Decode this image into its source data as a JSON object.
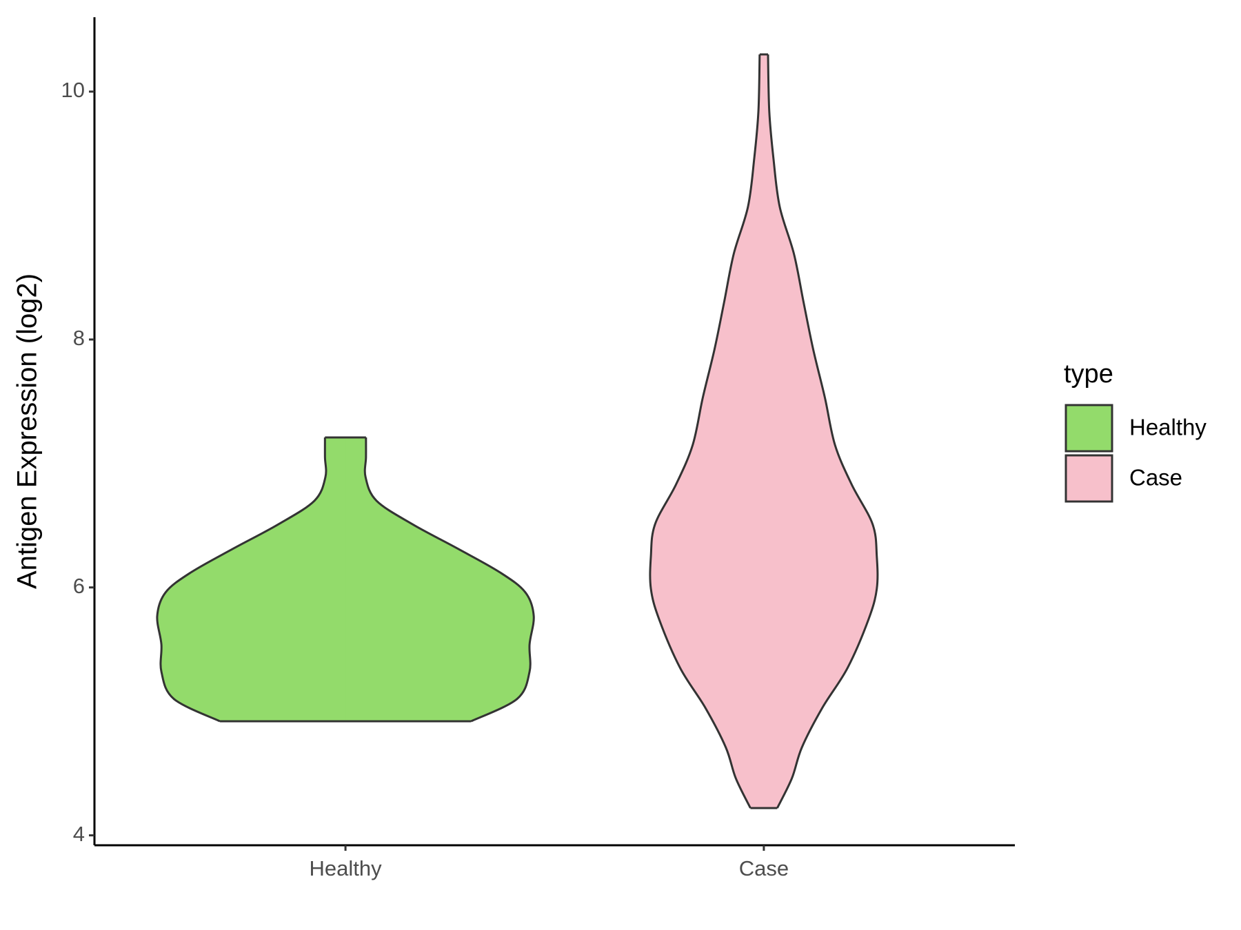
{
  "chart_data": {
    "type": "violin",
    "y_label": "Antigen Expression (log2)",
    "categories": [
      "Healthy",
      "Case"
    ],
    "legend_title": "type",
    "legend": "right",
    "ylim": [
      3.92,
      10.6
    ],
    "yticks": [
      4,
      6,
      8,
      10
    ],
    "series": [
      {
        "name": "Healthy",
        "color": "#93DB6B",
        "y": [
          4.92,
          5.1,
          5.32,
          5.54,
          5.77,
          5.96,
          6.12,
          6.31,
          6.51,
          6.7,
          6.89,
          7.05,
          7.21
        ],
        "width": [
          0.3,
          0.41,
          0.44,
          0.44,
          0.45,
          0.43,
          0.37,
          0.27,
          0.16,
          0.074,
          0.048,
          0.049,
          0.049
        ]
      },
      {
        "name": "Case",
        "color": "#F7C0CB",
        "y": [
          4.22,
          4.46,
          4.71,
          5.03,
          5.35,
          5.74,
          5.99,
          6.25,
          6.51,
          6.83,
          7.15,
          7.53,
          7.92,
          8.3,
          8.69,
          9.07,
          9.46,
          9.84,
          10.3
        ],
        "width": [
          0.032,
          0.067,
          0.091,
          0.14,
          0.2,
          0.25,
          0.27,
          0.27,
          0.26,
          0.21,
          0.17,
          0.146,
          0.118,
          0.095,
          0.072,
          0.038,
          0.023,
          0.013,
          0.01
        ]
      }
    ]
  }
}
